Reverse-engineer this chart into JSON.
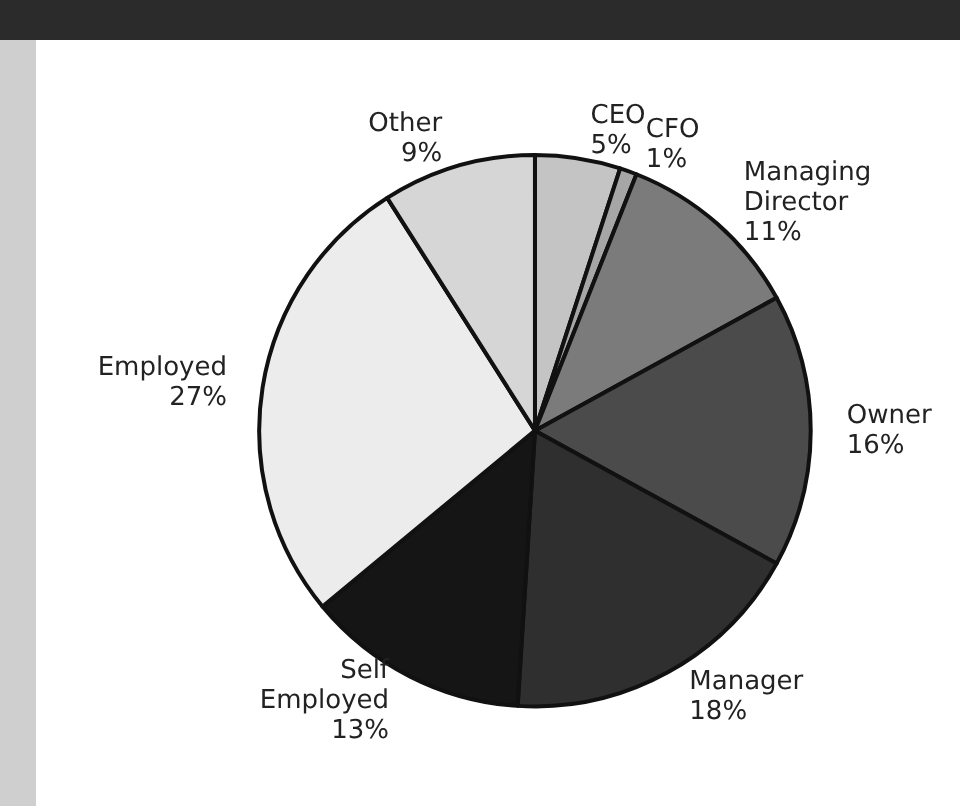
{
  "chart_data": {
    "type": "pie",
    "categories": [
      "CEO",
      "CFO",
      "Managing Director",
      "Owner",
      "Manager",
      "Self Employed",
      "Employed",
      "Other"
    ],
    "values": [
      5,
      1,
      11,
      16,
      18,
      13,
      27,
      9
    ],
    "value_labels": [
      "5%",
      "1%",
      "11%",
      "16%",
      "18%",
      "13%",
      "27%",
      "9%"
    ],
    "colors": [
      "#c4c4c4",
      "#a6a6a6",
      "#7b7b7b",
      "#4b4b4b",
      "#2f2f2f",
      "#151515",
      "#ececec",
      "#d6d6d6"
    ]
  }
}
